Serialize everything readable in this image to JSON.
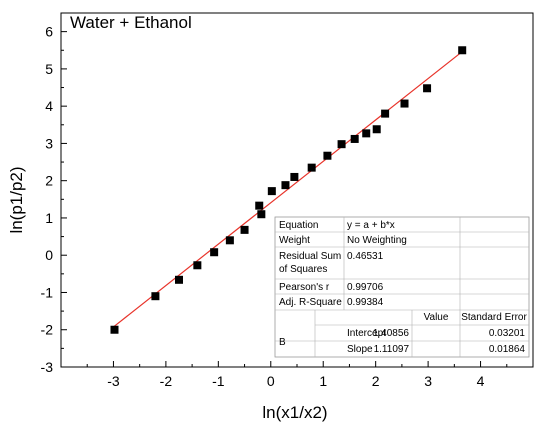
{
  "chart_data": {
    "type": "scatter",
    "title": "Water + Ethanol",
    "xlabel": "ln(x1/x2)",
    "ylabel": "ln(p1/p2)",
    "xlim": [
      -4,
      5
    ],
    "ylim": [
      -3,
      6.5
    ],
    "xticks": [
      "-3",
      "-2",
      "-1",
      "0",
      "1",
      "2",
      "3",
      "4"
    ],
    "yticks": [
      "-3",
      "-2",
      "-1",
      "0",
      "1",
      "2",
      "3",
      "4",
      "5",
      "6"
    ],
    "points": {
      "x": [
        -2.98,
        -2.2,
        -1.75,
        -1.4,
        -1.08,
        -0.78,
        -0.5,
        -0.18,
        -0.22,
        0.02,
        0.28,
        0.45,
        0.78,
        1.08,
        1.35,
        1.6,
        1.82,
        2.02,
        2.18,
        2.55,
        2.98,
        3.65
      ],
      "y": [
        -2.0,
        -1.1,
        -0.66,
        -0.27,
        0.08,
        0.4,
        0.68,
        1.1,
        1.33,
        1.72,
        1.88,
        2.1,
        2.35,
        2.67,
        2.98,
        3.12,
        3.27,
        3.38,
        3.8,
        4.07,
        4.48,
        5.5
      ]
    },
    "fit_line": {
      "intercept": 1.40856,
      "slope": 1.11097,
      "x_range": [
        -3,
        3.7
      ]
    },
    "grid": false,
    "colors": {
      "points": "#000000",
      "fit_line": "#e8332a",
      "axes": "#000000"
    },
    "stats_table": {
      "rows": [
        [
          "Equation",
          "y = a + b*x"
        ],
        [
          "Weight",
          "No Weighting"
        ],
        [
          "Residual Sum of Squares",
          "0.46531"
        ],
        [
          "Pearson's r",
          "0.99706"
        ],
        [
          "Adj. R-Square",
          "0.99384"
        ]
      ],
      "header": [
        "Value",
        "Standard Error"
      ],
      "param_group": "B",
      "params": [
        [
          "Intercept",
          "1.40856",
          "0.03201"
        ],
        [
          "Slope",
          "1.11097",
          "0.01864"
        ]
      ]
    }
  }
}
